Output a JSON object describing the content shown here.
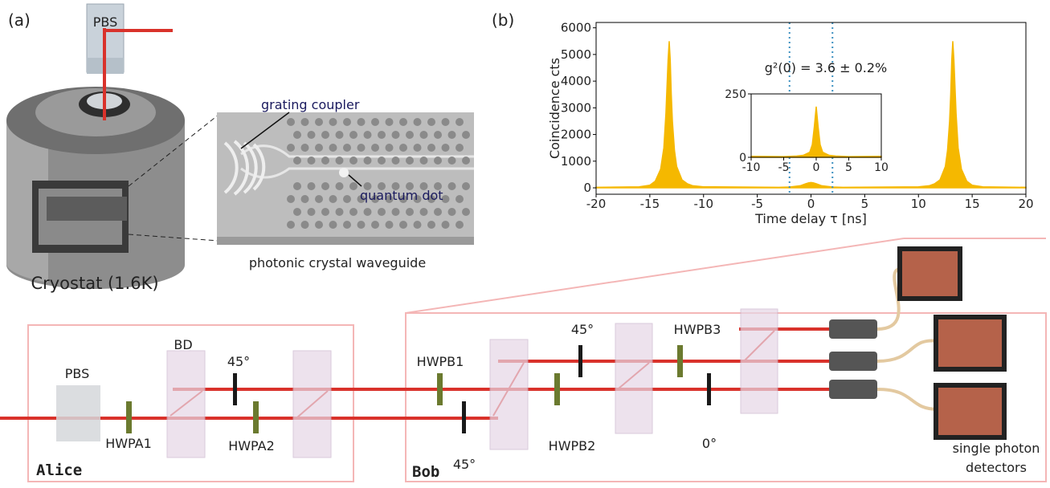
{
  "panel_labels": [
    "(a)",
    "(b)"
  ],
  "cryostat": {
    "pbs": "PBS",
    "grating_coupler": "grating coupler",
    "quantum_dot": "quantum dot",
    "waveguide": "photonic crystal waveguide",
    "label": "Cryostat (1.6K)"
  },
  "alice": {
    "name": "Alice",
    "pbs": "PBS",
    "bd": "BD",
    "angle": "45°",
    "hwp1": "HWPA1",
    "hwp2": "HWPA2"
  },
  "bob": {
    "name": "Bob",
    "hwp1": "HWPB1",
    "hwp2": "HWPB2",
    "hwp3": "HWPB3",
    "angle_top": "45°",
    "angle_bottom": "45°",
    "angle_zero": "0°",
    "detectors": [
      "single photon",
      "detectors"
    ]
  },
  "chart_data": [
    {
      "type": "area",
      "annotation": "g²(0) = 3.6 ± 0.2%",
      "x_label": "Time delay τ [ns]",
      "y_label": "Coincidence cts",
      "xlim": [
        -20,
        20
      ],
      "ylim": [
        -240,
        6200
      ],
      "xticks": [
        -20,
        -15,
        -10,
        -5,
        0,
        5,
        10,
        15,
        20
      ],
      "yticks": [
        0,
        1000,
        2000,
        3000,
        4000,
        5000,
        6000
      ],
      "vlines": [
        -2,
        2
      ],
      "vline_color": "#3a8fc0",
      "x": [
        -20,
        -16,
        -15,
        -14.5,
        -14,
        -13.7,
        -13.5,
        -13.3,
        -13.2,
        -13.1,
        -13,
        -12.9,
        -12.7,
        -12.5,
        -12,
        -11.5,
        -11,
        -10,
        -3,
        -2,
        -1,
        -0.5,
        -0.2,
        0,
        0.2,
        0.5,
        1,
        2,
        3,
        10,
        11,
        11.5,
        12,
        12.5,
        12.7,
        12.9,
        13,
        13.1,
        13.2,
        13.3,
        13.5,
        13.7,
        14,
        14.5,
        15,
        16,
        20
      ],
      "series": [
        {
          "color": "#f5b800",
          "values": [
            20,
            40,
            100,
            250,
            700,
            1500,
            2800,
            4800,
            5500,
            4800,
            3500,
            2500,
            1400,
            800,
            300,
            150,
            80,
            40,
            20,
            30,
            80,
            150,
            190,
            200,
            190,
            150,
            80,
            30,
            20,
            40,
            80,
            150,
            300,
            800,
            1400,
            2500,
            3500,
            4800,
            5500,
            4800,
            2800,
            1500,
            700,
            250,
            100,
            40,
            20
          ]
        }
      ]
    },
    {
      "type": "area",
      "xlim": [
        -10,
        10
      ],
      "ylim": [
        0,
        250
      ],
      "xticks": [
        -10,
        -5,
        0,
        5,
        10
      ],
      "yticks": [
        0,
        250
      ],
      "x": [
        -10,
        -5,
        -3,
        -2,
        -1,
        -0.6,
        -0.3,
        0,
        0.3,
        0.6,
        1,
        2,
        3,
        5,
        10
      ],
      "series": [
        {
          "color": "#f5b800",
          "values": [
            4,
            3,
            5,
            8,
            20,
            50,
            120,
            200,
            120,
            50,
            20,
            8,
            5,
            3,
            4
          ]
        }
      ]
    }
  ]
}
